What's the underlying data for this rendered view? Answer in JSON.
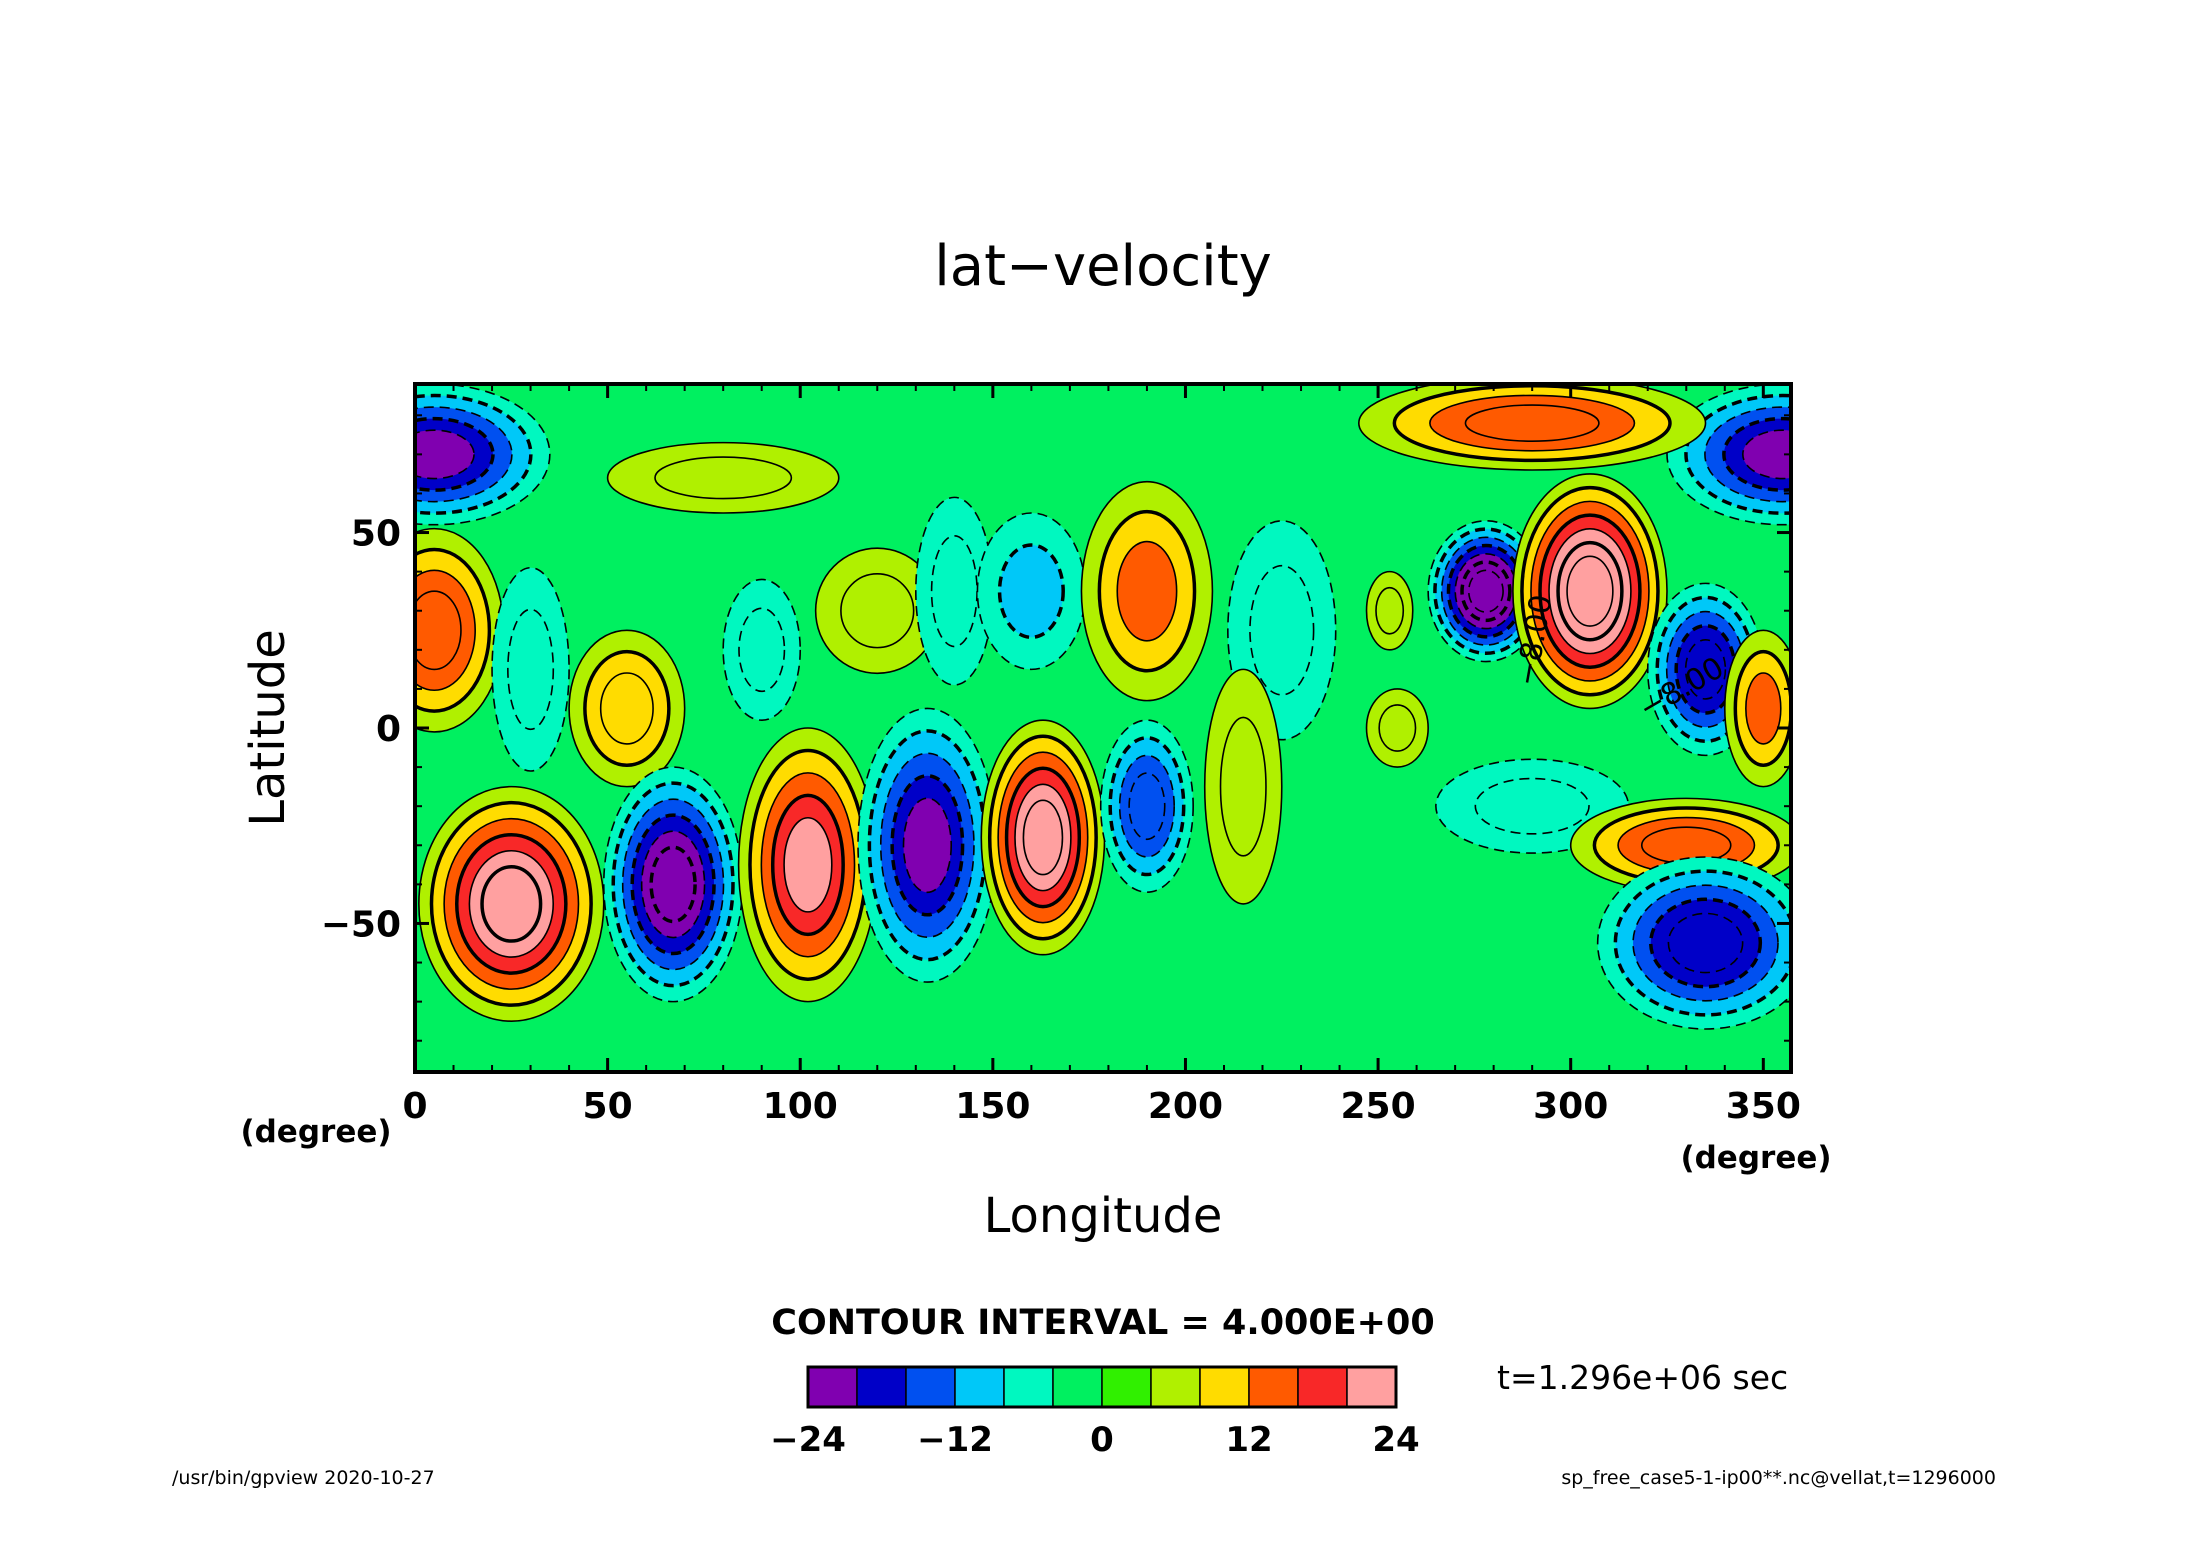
{
  "chart_data": {
    "type": "heatmap",
    "title": "lat−velocity",
    "xlabel": "Longitude",
    "ylabel": "Latitude",
    "x_unit": "(degree)",
    "y_unit": "(degree)",
    "xlim": [
      0,
      357.1875
    ],
    "ylim": [
      -88,
      88
    ],
    "xticks": [
      0,
      50,
      100,
      150,
      200,
      250,
      300,
      350
    ],
    "xtick_labels": [
      "0",
      "50",
      "100",
      "150",
      "200",
      "250",
      "300",
      "350"
    ],
    "yticks": [
      -50,
      0,
      50
    ],
    "ytick_labels": [
      "−50",
      "0",
      "50"
    ],
    "contour_interval_label": "CONTOUR INTERVAL = 4.000E+00",
    "contour_labels": [
      {
        "text": "−8.00",
        "lon": 293,
        "lat": 22
      },
      {
        "text": "−8.00",
        "lon": 330,
        "lat": 8
      }
    ],
    "colorbar": {
      "levels": [
        -24,
        -20,
        -16,
        -12,
        -8,
        -4,
        0,
        4,
        8,
        12,
        16,
        20,
        24
      ],
      "colors": [
        "#8000b0",
        "#0000c8",
        "#0050f0",
        "#00c8f8",
        "#00f8c0",
        "#00f060",
        "#30f000",
        "#b0f000",
        "#ffdc00",
        "#ff5a00",
        "#f82828",
        "#ffa0a0"
      ],
      "tick_values": [
        -24,
        -12,
        0,
        12,
        24
      ],
      "tick_labels": [
        "−24",
        "−12",
        "0",
        "12",
        "24"
      ]
    },
    "features": [
      {
        "lon": 5,
        "lat": 70,
        "value": -20,
        "rx": 30,
        "ry": 18
      },
      {
        "lon": 355,
        "lat": 70,
        "value": -20,
        "rx": 30,
        "ry": 18
      },
      {
        "lon": 80,
        "lat": 64,
        "value": 5,
        "rx": 30,
        "ry": 9
      },
      {
        "lon": 5,
        "lat": 25,
        "value": 14,
        "rx": 18,
        "ry": 26
      },
      {
        "lon": 30,
        "lat": 15,
        "value": -7,
        "rx": 10,
        "ry": 26
      },
      {
        "lon": 55,
        "lat": 5,
        "value": 10,
        "rx": 15,
        "ry": 20
      },
      {
        "lon": 90,
        "lat": 20,
        "value": -5,
        "rx": 10,
        "ry": 18
      },
      {
        "lon": 120,
        "lat": 30,
        "value": 6,
        "rx": 16,
        "ry": 16
      },
      {
        "lon": 140,
        "lat": 35,
        "value": -5,
        "rx": 10,
        "ry": 24
      },
      {
        "lon": 160,
        "lat": 35,
        "value": -8,
        "rx": 14,
        "ry": 20
      },
      {
        "lon": 190,
        "lat": 35,
        "value": 12,
        "rx": 17,
        "ry": 28
      },
      {
        "lon": 225,
        "lat": 25,
        "value": -7,
        "rx": 14,
        "ry": 28
      },
      {
        "lon": 253,
        "lat": 30,
        "value": 5,
        "rx": 6,
        "ry": 10
      },
      {
        "lon": 255,
        "lat": 0,
        "value": 5,
        "rx": 8,
        "ry": 10
      },
      {
        "lon": 278,
        "lat": 35,
        "value": -25,
        "rx": 15,
        "ry": 18
      },
      {
        "lon": 305,
        "lat": 35,
        "value": 26,
        "rx": 20,
        "ry": 30
      },
      {
        "lon": 290,
        "lat": 78,
        "value": 14,
        "rx": 45,
        "ry": 12
      },
      {
        "lon": 335,
        "lat": 15,
        "value": -18,
        "rx": 15,
        "ry": 22
      },
      {
        "lon": 350,
        "lat": 5,
        "value": 12,
        "rx": 10,
        "ry": 20
      },
      {
        "lon": 25,
        "lat": -45,
        "value": 24,
        "rx": 24,
        "ry": 30
      },
      {
        "lon": 67,
        "lat": -40,
        "value": -24,
        "rx": 18,
        "ry": 30
      },
      {
        "lon": 102,
        "lat": -35,
        "value": 20,
        "rx": 18,
        "ry": 35
      },
      {
        "lon": 133,
        "lat": -30,
        "value": -20,
        "rx": 18,
        "ry": 35
      },
      {
        "lon": 163,
        "lat": -28,
        "value": 22,
        "rx": 16,
        "ry": 30
      },
      {
        "lon": 190,
        "lat": -20,
        "value": -14,
        "rx": 12,
        "ry": 22
      },
      {
        "lon": 215,
        "lat": -15,
        "value": 5,
        "rx": 10,
        "ry": 30
      },
      {
        "lon": 290,
        "lat": -20,
        "value": -6,
        "rx": 25,
        "ry": 12
      },
      {
        "lon": 330,
        "lat": -30,
        "value": 14,
        "rx": 30,
        "ry": 12
      },
      {
        "lon": 335,
        "lat": -55,
        "value": -18,
        "rx": 28,
        "ry": 22
      }
    ]
  },
  "time_label": "t=1.296e+06 sec",
  "footer": {
    "left": "/usr/bin/gpview   2020-10-27",
    "right": "sp_free_case5-1-ip00**.nc@vellat,t=1296000"
  }
}
